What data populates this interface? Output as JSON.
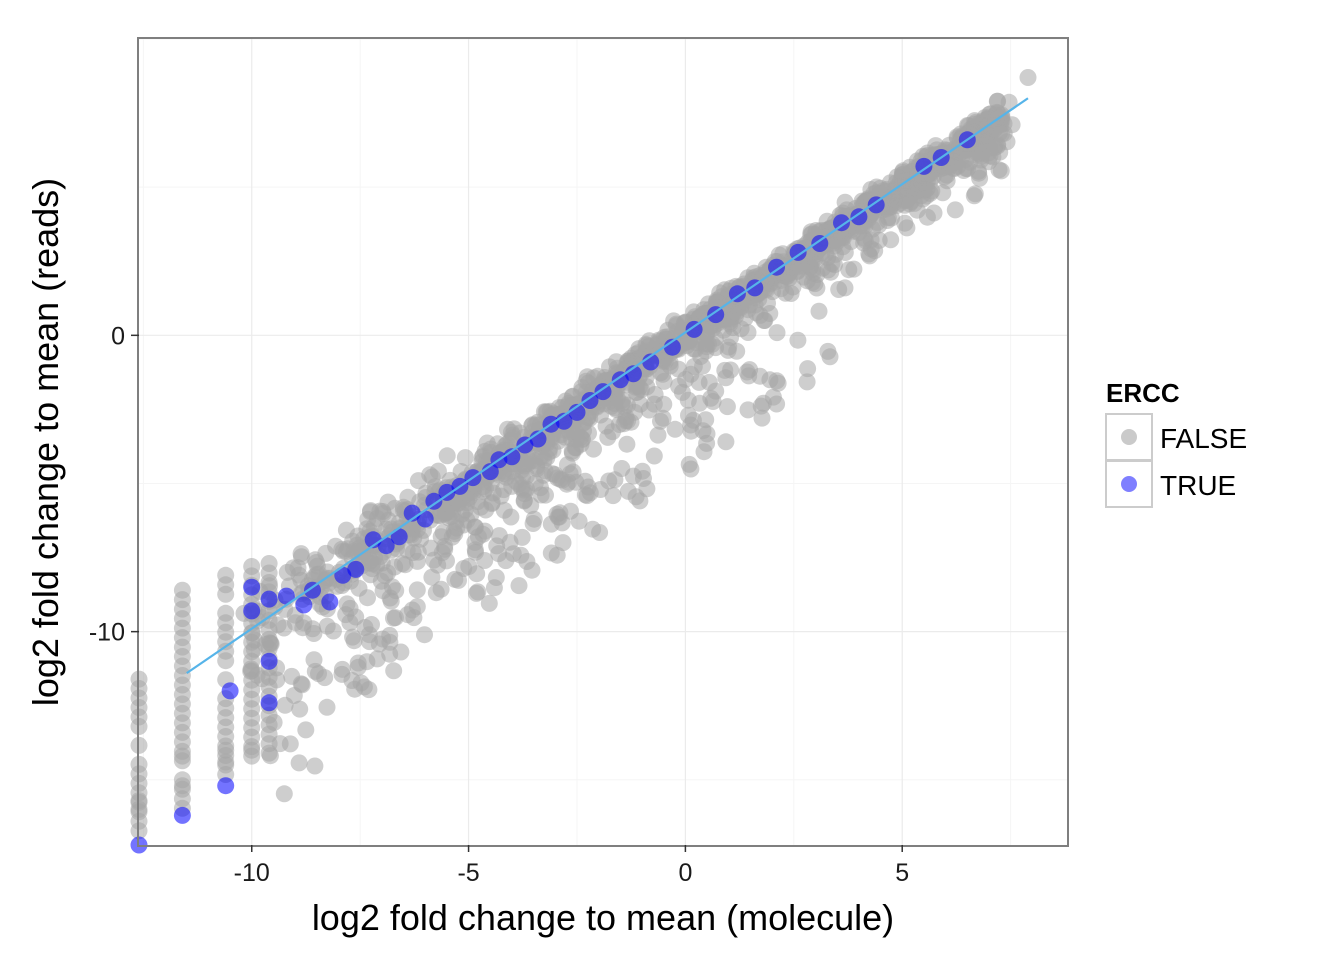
{
  "chart_data": {
    "type": "scatter",
    "title": "",
    "xlabel": "log2 fold change to mean (molecule)",
    "ylabel": "log2 fold change to mean (reads)",
    "xlim": [
      -12.6,
      8.8
    ],
    "ylim": [
      -17.2,
      10.0
    ],
    "x_ticks": [
      -10,
      -5,
      0,
      5
    ],
    "x_tick_labels": [
      "-10",
      "-5",
      "0",
      "5"
    ],
    "y_ticks": [
      -10,
      0
    ],
    "y_tick_labels": [
      "-10",
      "0"
    ],
    "grid": true,
    "legend": {
      "title": "ERCC",
      "position": "right",
      "entries": [
        "FALSE",
        "TRUE"
      ]
    },
    "colors": {
      "FALSE": "#a6a6a6",
      "TRUE": "#0000ff",
      "fit_line": "#56b4e9"
    },
    "fit_line": {
      "x": [
        -11.5,
        7.9
      ],
      "y": [
        -11.4,
        8.0
      ]
    },
    "series": [
      {
        "name": "TRUE",
        "points": [
          [
            -12.6,
            -17.2
          ],
          [
            -11.6,
            -16.2
          ],
          [
            -10.6,
            -15.2
          ],
          [
            -10.5,
            -12.0
          ],
          [
            -10.0,
            -9.3
          ],
          [
            -10.0,
            -8.5
          ],
          [
            -9.6,
            -11.0
          ],
          [
            -9.6,
            -8.9
          ],
          [
            -9.6,
            -12.4
          ],
          [
            -9.2,
            -8.8
          ],
          [
            -8.8,
            -9.1
          ],
          [
            -8.6,
            -8.6
          ],
          [
            -8.2,
            -9.0
          ],
          [
            -7.9,
            -8.1
          ],
          [
            -7.6,
            -7.9
          ],
          [
            -7.2,
            -6.9
          ],
          [
            -6.9,
            -7.1
          ],
          [
            -6.6,
            -6.8
          ],
          [
            -6.3,
            -6.0
          ],
          [
            -6.0,
            -6.2
          ],
          [
            -5.8,
            -5.6
          ],
          [
            -5.5,
            -5.3
          ],
          [
            -5.2,
            -5.1
          ],
          [
            -4.9,
            -4.8
          ],
          [
            -4.5,
            -4.6
          ],
          [
            -4.3,
            -4.2
          ],
          [
            -4.0,
            -4.1
          ],
          [
            -3.7,
            -3.7
          ],
          [
            -3.4,
            -3.5
          ],
          [
            -3.1,
            -3.0
          ],
          [
            -2.8,
            -2.9
          ],
          [
            -2.5,
            -2.6
          ],
          [
            -2.2,
            -2.2
          ],
          [
            -1.9,
            -1.9
          ],
          [
            -1.5,
            -1.5
          ],
          [
            -1.2,
            -1.3
          ],
          [
            -0.8,
            -0.9
          ],
          [
            -0.3,
            -0.4
          ],
          [
            0.2,
            0.2
          ],
          [
            0.7,
            0.7
          ],
          [
            1.2,
            1.4
          ],
          [
            1.6,
            1.6
          ],
          [
            2.1,
            2.3
          ],
          [
            2.6,
            2.8
          ],
          [
            3.1,
            3.1
          ],
          [
            3.6,
            3.8
          ],
          [
            4.0,
            4.0
          ],
          [
            4.4,
            4.4
          ],
          [
            5.5,
            5.7
          ],
          [
            5.9,
            6.0
          ],
          [
            6.5,
            6.6
          ]
        ]
      }
    ]
  }
}
